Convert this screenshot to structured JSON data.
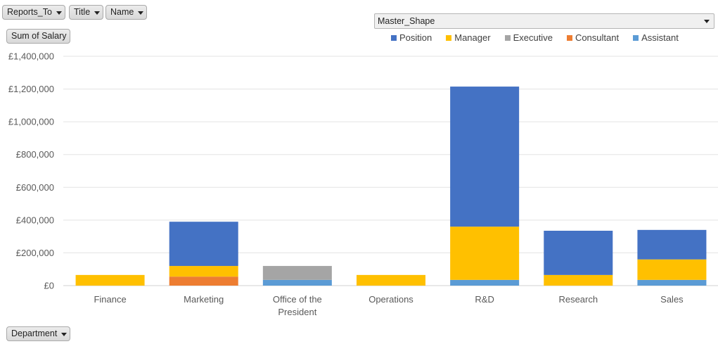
{
  "filters": {
    "reports_to": "Reports_To",
    "title": "Title",
    "name": "Name",
    "values_field": "Sum of Salary",
    "axis_field": "Department",
    "legend_field": "Master_Shape"
  },
  "colors": {
    "Position": "#4472C4",
    "Manager": "#FFC000",
    "Executive": "#A5A5A5",
    "Consultant": "#ED7D31",
    "Assistant": "#5B9BD5"
  },
  "chart_data": {
    "type": "bar",
    "stacked": true,
    "categories": [
      "Finance",
      "Marketing",
      "Office of the President",
      "Operations",
      "R&D",
      "Research",
      "Sales"
    ],
    "category_lines": [
      [
        "Finance"
      ],
      [
        "Marketing"
      ],
      [
        "Office of the",
        "President"
      ],
      [
        "Operations"
      ],
      [
        "R&D"
      ],
      [
        "Research"
      ],
      [
        "Sales"
      ]
    ],
    "series": [
      {
        "name": "Assistant",
        "values": [
          0,
          0,
          35000,
          0,
          35000,
          0,
          35000
        ]
      },
      {
        "name": "Consultant",
        "values": [
          0,
          55000,
          0,
          0,
          0,
          0,
          0
        ]
      },
      {
        "name": "Manager",
        "values": [
          65000,
          65000,
          0,
          65000,
          325000,
          65000,
          125000
        ]
      },
      {
        "name": "Executive",
        "values": [
          0,
          0,
          85000,
          0,
          0,
          0,
          0
        ]
      },
      {
        "name": "Position",
        "values": [
          0,
          270000,
          0,
          0,
          855000,
          270000,
          180000
        ]
      }
    ],
    "legend_order": [
      "Position",
      "Manager",
      "Executive",
      "Consultant",
      "Assistant"
    ],
    "ylim": [
      0,
      1400000
    ],
    "yticks": [
      0,
      200000,
      400000,
      600000,
      800000,
      1000000,
      1200000,
      1400000
    ],
    "ytick_labels": [
      "£0",
      "£200,000",
      "£400,000",
      "£600,000",
      "£800,000",
      "£1,000,000",
      "£1,200,000",
      "£1,400,000"
    ],
    "grid": true,
    "legend_position": "top-right"
  }
}
